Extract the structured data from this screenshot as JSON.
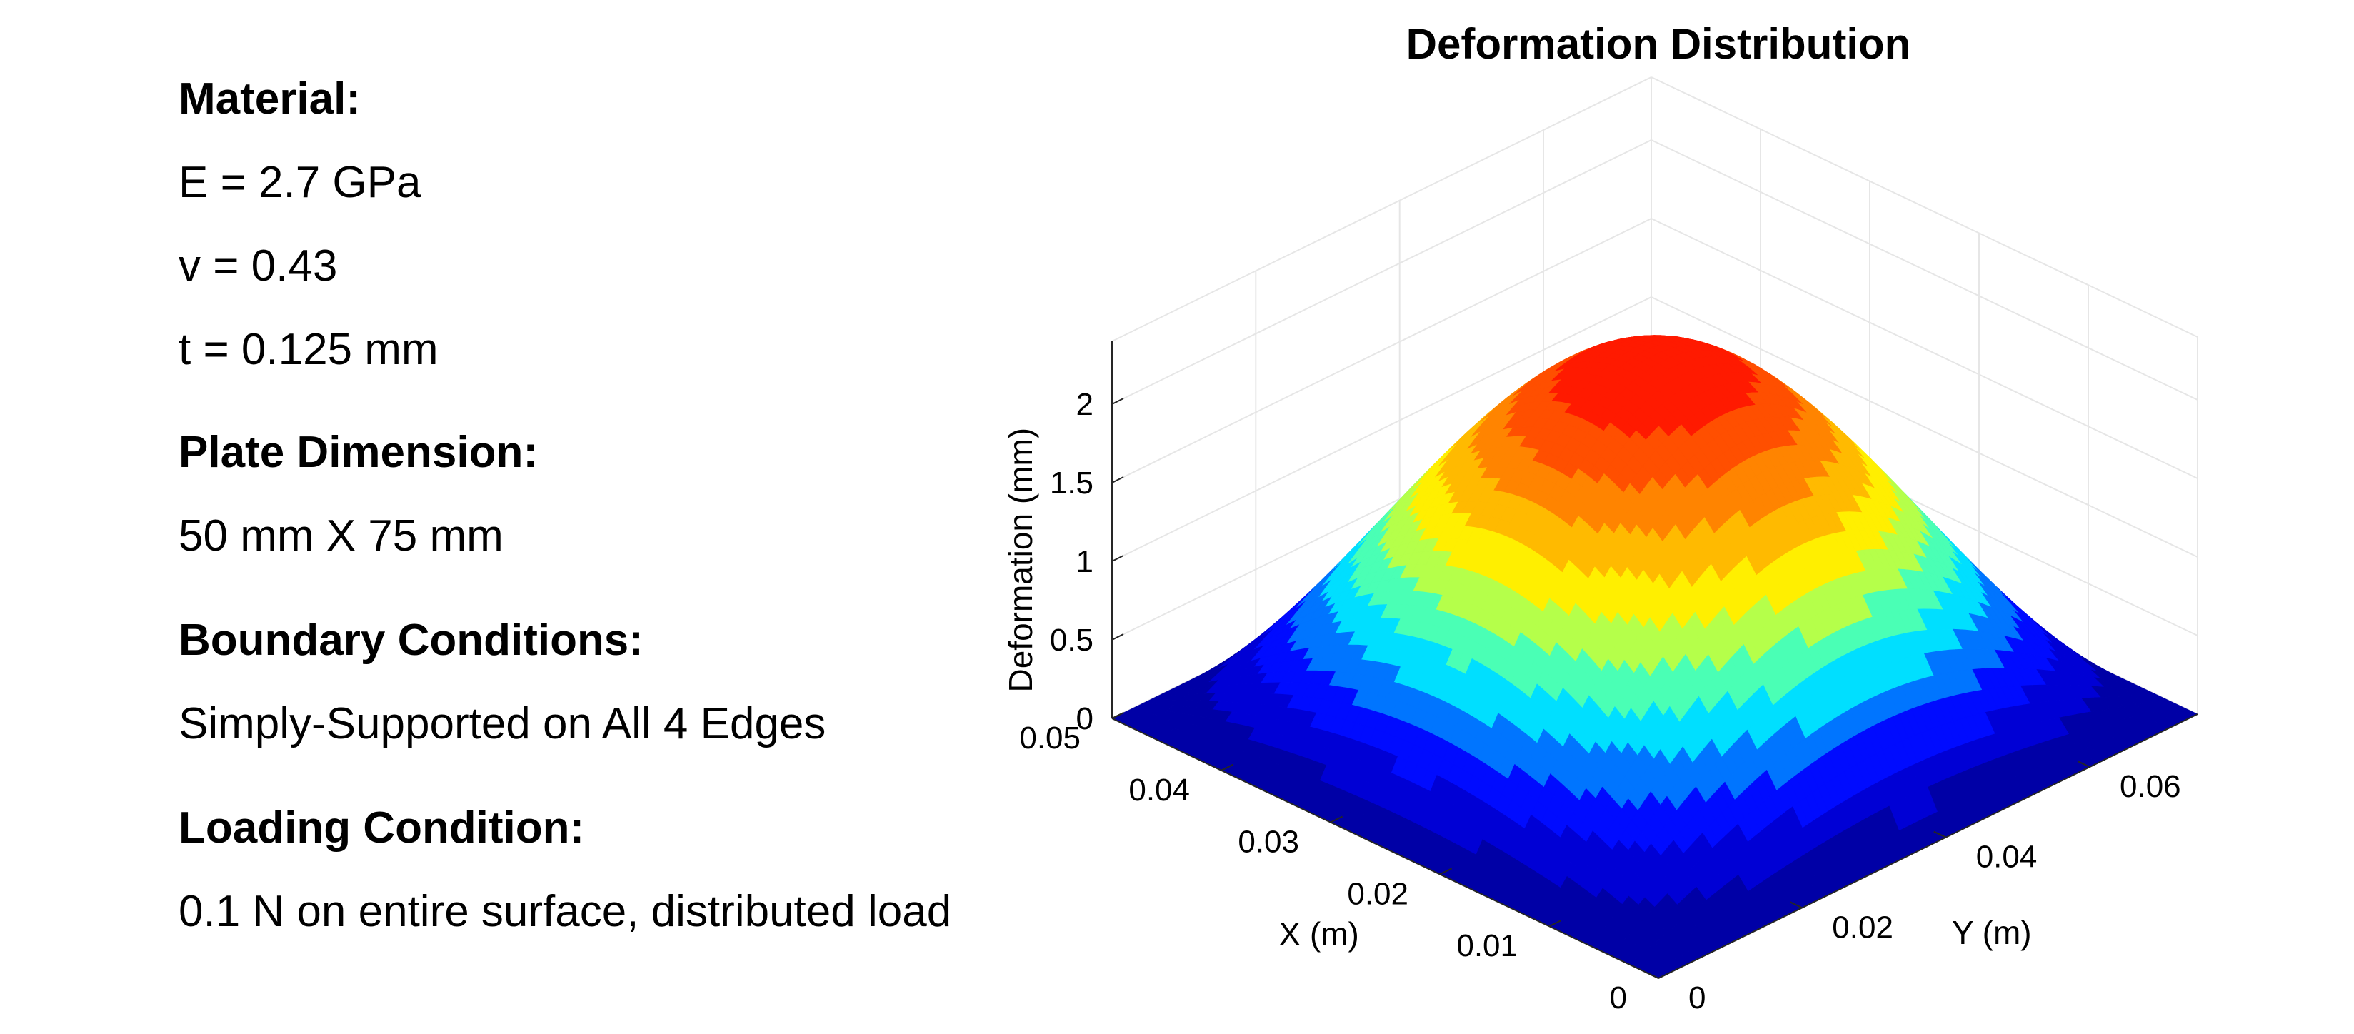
{
  "info": {
    "material_heading": "Material:",
    "e_line": "E = 2.7 GPa",
    "v_line": "v = 0.43",
    "t_line": "t = 0.125 mm",
    "dimension_heading": "Plate Dimension:",
    "dimension_value": "50 mm X 75 mm",
    "boundary_heading": "Boundary Conditions:",
    "boundary_value": "Simply-Supported on All 4 Edges",
    "loading_heading": "Loading Condition:",
    "loading_value": "0.1 N on entire surface, distributed load"
  },
  "colors": {
    "grid": "#e6e6e6",
    "axis": "#262626",
    "text": "#000000",
    "colormap": [
      "#00008f",
      "#0000ff",
      "#00ffff",
      "#ffff00",
      "#ff7f00",
      "#ff0000"
    ]
  },
  "chart_data": {
    "type": "surface",
    "title": "Deformation Distribution",
    "xlabel": "X (m)",
    "ylabel": "Y (m)",
    "zlabel": "Deformation (mm)",
    "xlim": [
      0,
      0.05
    ],
    "ylim": [
      0,
      0.075
    ],
    "zlim": [
      0,
      2.4
    ],
    "x_ticks": [
      0,
      0.01,
      0.02,
      0.03,
      0.04,
      0.05
    ],
    "x_tick_labels": [
      "0",
      "0.01",
      "0.02",
      "0.03",
      "0.04",
      "0.05"
    ],
    "y_ticks": [
      0,
      0.02,
      0.04,
      0.06
    ],
    "y_tick_labels": [
      "0",
      "0.02",
      "0.04",
      "0.06"
    ],
    "z_ticks": [
      0,
      0.5,
      1,
      1.5,
      2
    ],
    "z_tick_labels": [
      "0",
      "0.5",
      "1",
      "1.5",
      "2"
    ],
    "peak_deformation": 2.3,
    "peak_location": [
      0.025,
      0.0375
    ],
    "surface_model": "w = peak * sin(pi*x/a) * sin(pi*y/b)",
    "colormap": "jet",
    "contour_bands": 12,
    "grid": true
  }
}
